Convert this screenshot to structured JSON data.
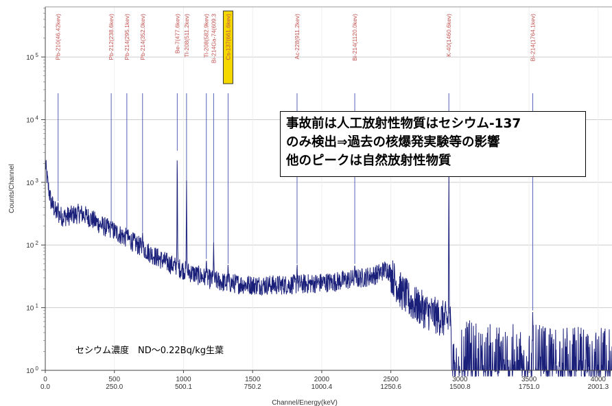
{
  "chart_data": {
    "type": "line",
    "xlabel": "Channel/Energy(keV)",
    "ylabel": "Counts/Channel",
    "x_ticks": [
      {
        "channel": "0",
        "energy": "0.0",
        "ch": 0
      },
      {
        "channel": "500",
        "energy": "250.0",
        "ch": 500
      },
      {
        "channel": "1000",
        "energy": "500.1",
        "ch": 1000
      },
      {
        "channel": "1500",
        "energy": "750.2",
        "ch": 1500
      },
      {
        "channel": "2000",
        "energy": "1000.4",
        "ch": 2000
      },
      {
        "channel": "2500",
        "energy": "1250.6",
        "ch": 2500
      },
      {
        "channel": "3000",
        "energy": "1500.8",
        "ch": 3000
      },
      {
        "channel": "3500",
        "energy": "1751.0",
        "ch": 3500
      },
      {
        "channel": "4000",
        "energy": "2001.3",
        "ch": 4000
      }
    ],
    "y_ticks": [
      {
        "base": "10",
        "exp": "0",
        "value": 1
      },
      {
        "base": "10",
        "exp": "1",
        "value": 10
      },
      {
        "base": "10",
        "exp": "2",
        "value": 100
      },
      {
        "base": "10",
        "exp": "3",
        "value": 1000
      },
      {
        "base": "10",
        "exp": "4",
        "value": 10000
      },
      {
        "base": "10",
        "exp": "5",
        "value": 100000
      }
    ],
    "xlim": [
      0,
      4100
    ],
    "ylim_log10": [
      0,
      5.8
    ],
    "grid": true,
    "peaks": [
      {
        "label": "Pb-210(46.42kev)",
        "energy_kev": 46.42,
        "counts": 500,
        "highlight": false
      },
      {
        "label": "Pb-212(238.6kev)",
        "energy_kev": 238.6,
        "counts": 220,
        "highlight": false
      },
      {
        "label": "Pb-214(295.1kev)",
        "energy_kev": 295.1,
        "counts": 170,
        "highlight": false
      },
      {
        "label": "Pb-214(352.0kev)",
        "energy_kev": 352.0,
        "counts": 160,
        "highlight": false
      },
      {
        "label": "Be-7(477.6kev)",
        "energy_kev": 477.6,
        "counts": 3200,
        "highlight": false
      },
      {
        "label": "Tl-208(511.2kev)",
        "energy_kev": 511.2,
        "counts": 1100,
        "highlight": false
      },
      {
        "label": "Tl-208(582.9kev)",
        "energy_kev": 582.9,
        "counts": 60,
        "highlight": false
      },
      {
        "label": "Bi-214Ga-74(609.3",
        "energy_kev": 609.3,
        "counts": 110,
        "highlight": false
      },
      {
        "label": "Cs-137(661.6kev)",
        "energy_kev": 661.6,
        "counts": 50,
        "highlight": true
      },
      {
        "label": "Ac-228(911.2kev)",
        "energy_kev": 911.2,
        "counts": 50,
        "highlight": false
      },
      {
        "label": "Bi-214(1120.0kev)",
        "energy_kev": 1120.0,
        "counts": 50,
        "highlight": false
      },
      {
        "label": "K-40(1460.6kev)",
        "energy_kev": 1460.6,
        "counts": 1800,
        "highlight": false
      },
      {
        "label": "Bi-214(1764.1kev)",
        "energy_kev": 1764.1,
        "counts": 9,
        "highlight": false
      }
    ],
    "baseline": [
      {
        "ch": 0,
        "counts": 2000
      },
      {
        "ch": 20,
        "counts": 900
      },
      {
        "ch": 40,
        "counts": 500
      },
      {
        "ch": 80,
        "counts": 320
      },
      {
        "ch": 130,
        "counts": 280
      },
      {
        "ch": 200,
        "counts": 300
      },
      {
        "ch": 250,
        "counts": 320
      },
      {
        "ch": 300,
        "counts": 290
      },
      {
        "ch": 400,
        "counts": 210
      },
      {
        "ch": 500,
        "counts": 165
      },
      {
        "ch": 600,
        "counts": 125
      },
      {
        "ch": 700,
        "counts": 90
      },
      {
        "ch": 800,
        "counts": 65
      },
      {
        "ch": 900,
        "counts": 50
      },
      {
        "ch": 1000,
        "counts": 40
      },
      {
        "ch": 1100,
        "counts": 33
      },
      {
        "ch": 1200,
        "counts": 28
      },
      {
        "ch": 1300,
        "counts": 25
      },
      {
        "ch": 1500,
        "counts": 23
      },
      {
        "ch": 1700,
        "counts": 23
      },
      {
        "ch": 1900,
        "counts": 24
      },
      {
        "ch": 2100,
        "counts": 26
      },
      {
        "ch": 2300,
        "counts": 30
      },
      {
        "ch": 2400,
        "counts": 34
      },
      {
        "ch": 2470,
        "counts": 42
      },
      {
        "ch": 2500,
        "counts": 35
      },
      {
        "ch": 2560,
        "counts": 20
      },
      {
        "ch": 2650,
        "counts": 12
      },
      {
        "ch": 2750,
        "counts": 9
      },
      {
        "ch": 2850,
        "counts": 7
      },
      {
        "ch": 2930,
        "counts": 6
      },
      {
        "ch": 2940,
        "counts": 2
      },
      {
        "ch": 3200,
        "counts": 1.6
      },
      {
        "ch": 3600,
        "counts": 1.5
      },
      {
        "ch": 4100,
        "counts": 1.4
      }
    ]
  },
  "annotation": {
    "lines": [
      "事故前は人工放射性物質はセシウム-137",
      "のみ検出⇒過去の核爆発実験等の影響",
      "他のピークは自然放射性物質"
    ]
  },
  "concentration_text": "セシウム濃度　ND～0.22Bq/kg生葉",
  "colors": {
    "series": "#1a1f7a",
    "peak_line": "#5560b8",
    "peak_label": "#c0504d",
    "highlight_box": "#f5d800",
    "grid": "#cccccc"
  }
}
